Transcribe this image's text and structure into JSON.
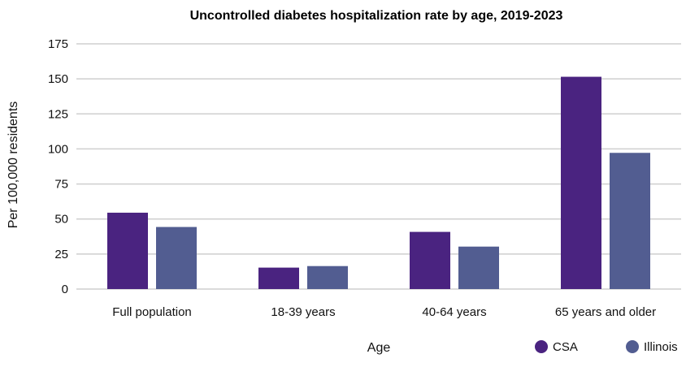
{
  "chart_data": {
    "type": "bar",
    "title": "Uncontrolled diabetes hospitalization rate by age, 2019-2023",
    "xlabel": "Age",
    "ylabel": "Per 100,000 residents",
    "categories": [
      "Full population",
      "18-39 years",
      "40-64 years",
      "65 years and older"
    ],
    "series": [
      {
        "name": "CSA",
        "color": "#4a2380",
        "values": [
          54.5,
          15.3,
          40.8,
          151.5
        ]
      },
      {
        "name": "Illinois",
        "color": "#525d91",
        "values": [
          44.3,
          16.4,
          30.3,
          97.2
        ]
      }
    ],
    "ylim": [
      0,
      175
    ],
    "yticks": [
      0,
      25,
      50,
      75,
      100,
      125,
      150,
      175
    ],
    "grid": true,
    "legend_position": "bottom-right"
  }
}
